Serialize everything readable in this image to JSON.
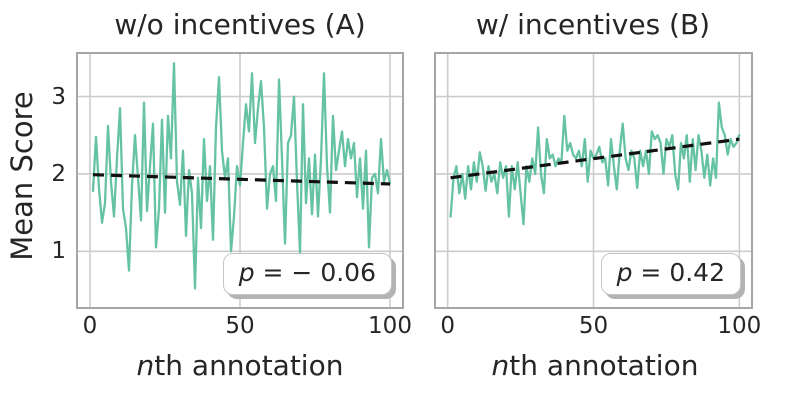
{
  "figure": {
    "background": "#ffffff",
    "text_color": "#262626",
    "line_color": "#66c2a5",
    "trend_color": "#111111",
    "grid_color": "#cccccc",
    "spine_color": "#a6a6a6",
    "annotation_box": {
      "fill": "#ffffff",
      "border": "#c6c6c6",
      "shadow": "#b3b3b3"
    }
  },
  "ylabel": "Mean Score",
  "xlabel": {
    "italic": "n",
    "rest": "th annotation"
  },
  "panels": [
    {
      "title": "w/o incentives (A)",
      "annotation": {
        "symbol": "p",
        "rest": " = − 0.06"
      }
    },
    {
      "title": "w/ incentives (B)",
      "annotation": {
        "symbol": "p",
        "rest": " = 0.42"
      }
    }
  ],
  "chart_data": [
    {
      "type": "line",
      "title": "w/o incentives (A)",
      "xlabel": "nth annotation",
      "ylabel": "Mean Score",
      "correlation_label": "p = −0.06",
      "x_range": [
        1,
        100
      ],
      "xticks": [
        0,
        50,
        100
      ],
      "yticks": [
        1,
        2,
        3
      ],
      "xlim": [
        -4,
        104
      ],
      "ylim": [
        0.28,
        3.55
      ],
      "grid": true,
      "line_color": "#66c2a5",
      "values": [
        1.78,
        2.48,
        1.81,
        1.37,
        1.62,
        2.62,
        1.9,
        1.45,
        2.2,
        2.85,
        1.55,
        1.3,
        0.75,
        1.85,
        2.5,
        1.95,
        1.4,
        2.92,
        1.52,
        2.1,
        2.65,
        1.05,
        1.55,
        2.7,
        1.5,
        2.75,
        2.2,
        3.43,
        1.9,
        1.6,
        2.3,
        1.2,
        2.05,
        1.75,
        0.52,
        1.95,
        1.3,
        2.45,
        1.65,
        2.1,
        1.15,
        2.6,
        3.25,
        2.3,
        1.95,
        2.2,
        1.0,
        1.45,
        2.1,
        1.85,
        2.4,
        2.9,
        2.55,
        3.3,
        2.4,
        2.85,
        3.2,
        2.6,
        1.55,
        2.0,
        2.1,
        1.65,
        3.22,
        2.2,
        1.1,
        2.4,
        2.5,
        3.0,
        1.9,
        0.98,
        2.9,
        1.62,
        2.2,
        1.48,
        2.25,
        1.45,
        2.2,
        3.3,
        2.1,
        1.5,
        2.75,
        2.05,
        2.3,
        2.55,
        2.1,
        2.45,
        2.2,
        2.4,
        1.7,
        2.2,
        1.55,
        2.3,
        1.05,
        1.95,
        2.0,
        1.75,
        2.45,
        1.9,
        2.05,
        1.88
      ],
      "trend": {
        "style": "dashed",
        "x": [
          1,
          100
        ],
        "y": [
          1.99,
          1.87
        ]
      }
    },
    {
      "type": "line",
      "title": "w/ incentives (B)",
      "xlabel": "nth annotation",
      "ylabel": "",
      "correlation_label": "p = 0.42",
      "x_range": [
        1,
        100
      ],
      "xticks": [
        0,
        50,
        100
      ],
      "yticks": [
        1,
        2,
        3
      ],
      "xlim": [
        -4,
        104
      ],
      "ylim": [
        0.28,
        3.55
      ],
      "grid": true,
      "line_color": "#66c2a5",
      "values": [
        1.45,
        1.95,
        2.1,
        1.75,
        2.0,
        1.68,
        2.1,
        1.8,
        2.15,
        1.9,
        2.28,
        2.1,
        1.78,
        2.1,
        1.9,
        2.0,
        1.75,
        2.15,
        1.95,
        2.1,
        1.45,
        2.1,
        1.8,
        2.15,
        1.75,
        1.35,
        2.1,
        1.9,
        2.2,
        2.0,
        2.6,
        2.0,
        1.75,
        2.45,
        2.2,
        2.25,
        2.1,
        2.2,
        2.15,
        2.75,
        2.3,
        2.4,
        2.25,
        2.2,
        2.3,
        2.1,
        2.45,
        1.9,
        2.3,
        2.2,
        2.25,
        2.35,
        2.15,
        2.2,
        1.85,
        2.45,
        2.1,
        1.8,
        2.3,
        2.65,
        2.2,
        2.05,
        2.3,
        2.2,
        1.82,
        2.3,
        2.1,
        2.3,
        2.0,
        2.55,
        2.45,
        2.5,
        2.4,
        2.0,
        2.45,
        2.35,
        2.5,
        2.0,
        1.8,
        2.4,
        2.2,
        2.5,
        1.9,
        2.45,
        2.05,
        2.5,
        2.3,
        1.95,
        2.25,
        1.85,
        2.2,
        1.95,
        2.92,
        2.6,
        2.5,
        2.25,
        2.45,
        2.35,
        2.4,
        2.5
      ],
      "trend": {
        "style": "dashed",
        "x": [
          1,
          100
        ],
        "y": [
          1.95,
          2.45
        ]
      }
    }
  ]
}
